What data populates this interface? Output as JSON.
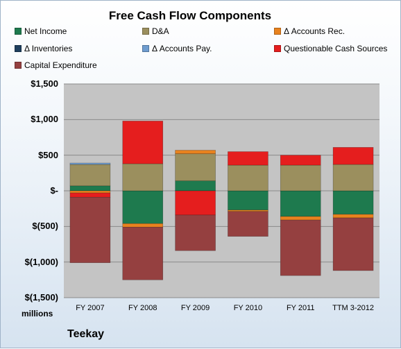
{
  "chart_data": {
    "type": "bar",
    "stacked": true,
    "title": "Free Cash Flow Components",
    "ylabel_unit": "millions",
    "categories": [
      "FY 2007",
      "FY 2008",
      "FY 2009",
      "FY 2010",
      "FY 2011",
      "TTM 3-2012"
    ],
    "y_ticks": [
      1500,
      1000,
      500,
      0,
      -500,
      -1000,
      -1500
    ],
    "y_tick_labels": [
      "$1,500",
      "$1,000",
      "$500",
      "$-",
      "$(500)",
      "$(1,000)",
      "$(1,500)"
    ],
    "ylim": [
      -1500,
      1500
    ],
    "legend_position": "top",
    "grid": true,
    "series": [
      {
        "name": "Net Income",
        "color": "#1e7a4e",
        "values": [
          70,
          -460,
          140,
          -270,
          -360,
          -330
        ]
      },
      {
        "name": "D&A",
        "color": "#9b8f5e",
        "values": [
          300,
          380,
          380,
          360,
          360,
          370
        ]
      },
      {
        "name": "Δ Accounts Rec.",
        "color": "#e8821e",
        "values": [
          -30,
          -50,
          50,
          -20,
          -50,
          -50
        ]
      },
      {
        "name": "Δ Inventories",
        "color": "#1f3f5e",
        "values": [
          0,
          0,
          0,
          0,
          0,
          0
        ]
      },
      {
        "name": "Δ Accounts Pay.",
        "color": "#6e9ccf",
        "values": [
          20,
          0,
          0,
          0,
          0,
          0
        ]
      },
      {
        "name": "Questionable Cash Sources",
        "color": "#e51e1e",
        "values": [
          -60,
          600,
          -340,
          190,
          140,
          240
        ]
      },
      {
        "name": "Capital Expenditure",
        "color": "#954040",
        "values": [
          -920,
          -740,
          -500,
          -350,
          -780,
          -740
        ]
      }
    ]
  },
  "footer": {
    "company": "Teekay"
  }
}
